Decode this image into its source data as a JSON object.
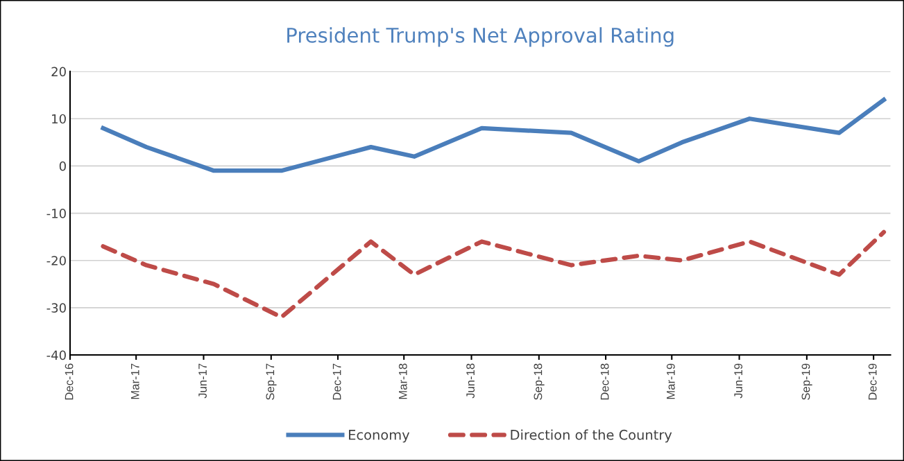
{
  "chart_data": {
    "type": "line",
    "title": "President Trump's Net Approval Rating",
    "x": [
      "2017-01-15",
      "2017-03-15",
      "2017-06-15",
      "2017-09-15",
      "2018-01-15",
      "2018-03-15",
      "2018-06-15",
      "2018-10-15",
      "2019-01-15",
      "2019-03-15",
      "2019-06-15",
      "2019-10-15",
      "2019-12-15"
    ],
    "series": [
      {
        "name": "Economy",
        "color": "#4a7ebb",
        "line_style": "solid",
        "values": [
          8,
          4,
          -1,
          -1,
          4,
          2,
          8,
          7,
          1,
          5,
          10,
          7,
          14
        ]
      },
      {
        "name": "Direction of the Country",
        "color": "#be4b48",
        "line_style": "dashed",
        "values": [
          -17,
          -21,
          -25,
          -32,
          -16,
          -23,
          -16,
          -21,
          -19,
          -20,
          -16,
          -23,
          -14
        ]
      }
    ],
    "xlim": [
      "2016-12-01",
      "2019-12-24"
    ],
    "xticks": [
      {
        "value": "2016-12-01",
        "label": "Dec-16"
      },
      {
        "value": "2017-03-01",
        "label": "Mar-17"
      },
      {
        "value": "2017-06-01",
        "label": "Jun-17"
      },
      {
        "value": "2017-09-01",
        "label": "Sep-17"
      },
      {
        "value": "2017-12-01",
        "label": "Dec-17"
      },
      {
        "value": "2018-03-01",
        "label": "Mar-18"
      },
      {
        "value": "2018-06-01",
        "label": "Jun-18"
      },
      {
        "value": "2018-09-01",
        "label": "Sep-18"
      },
      {
        "value": "2018-12-01",
        "label": "Dec-18"
      },
      {
        "value": "2019-03-01",
        "label": "Mar-19"
      },
      {
        "value": "2019-06-01",
        "label": "Jun-19"
      },
      {
        "value": "2019-09-01",
        "label": "Sep-19"
      },
      {
        "value": "2019-12-01",
        "label": "Dec-19"
      }
    ],
    "ylim": [
      -40,
      20
    ],
    "yticks": [
      -40,
      -30,
      -20,
      -10,
      0,
      10,
      20
    ],
    "grid": "y",
    "legend": "bottom",
    "marker": "none"
  }
}
